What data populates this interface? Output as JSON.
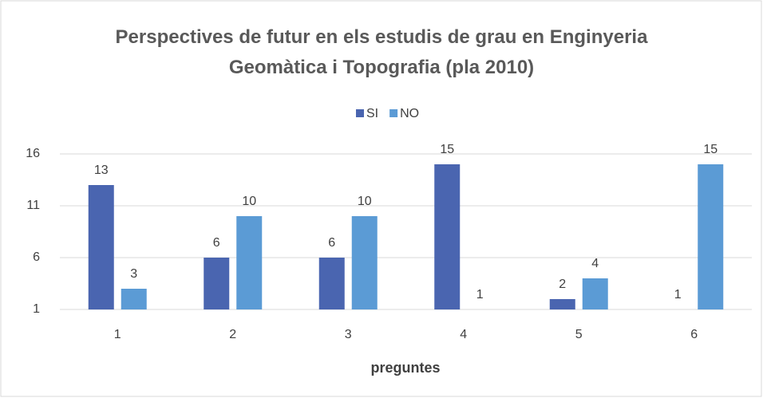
{
  "chart_data": {
    "type": "bar",
    "title": "Perspectives de futur en els estudis de grau en Enginyeria Geomàtica i Topografia (pla 2010)",
    "x_label": "preguntes",
    "categories": [
      "1",
      "2",
      "3",
      "4",
      "5",
      "6"
    ],
    "series": [
      {
        "name": "SI",
        "color": "#4a65b0",
        "values": [
          13,
          6,
          6,
          15,
          2,
          1
        ]
      },
      {
        "name": "NO",
        "color": "#5b9bd5",
        "values": [
          3,
          10,
          10,
          1,
          4,
          15
        ]
      }
    ],
    "ylim": [
      1,
      16
    ],
    "yticks": [
      1,
      6,
      11,
      16
    ],
    "grid": true,
    "legend": "top"
  }
}
